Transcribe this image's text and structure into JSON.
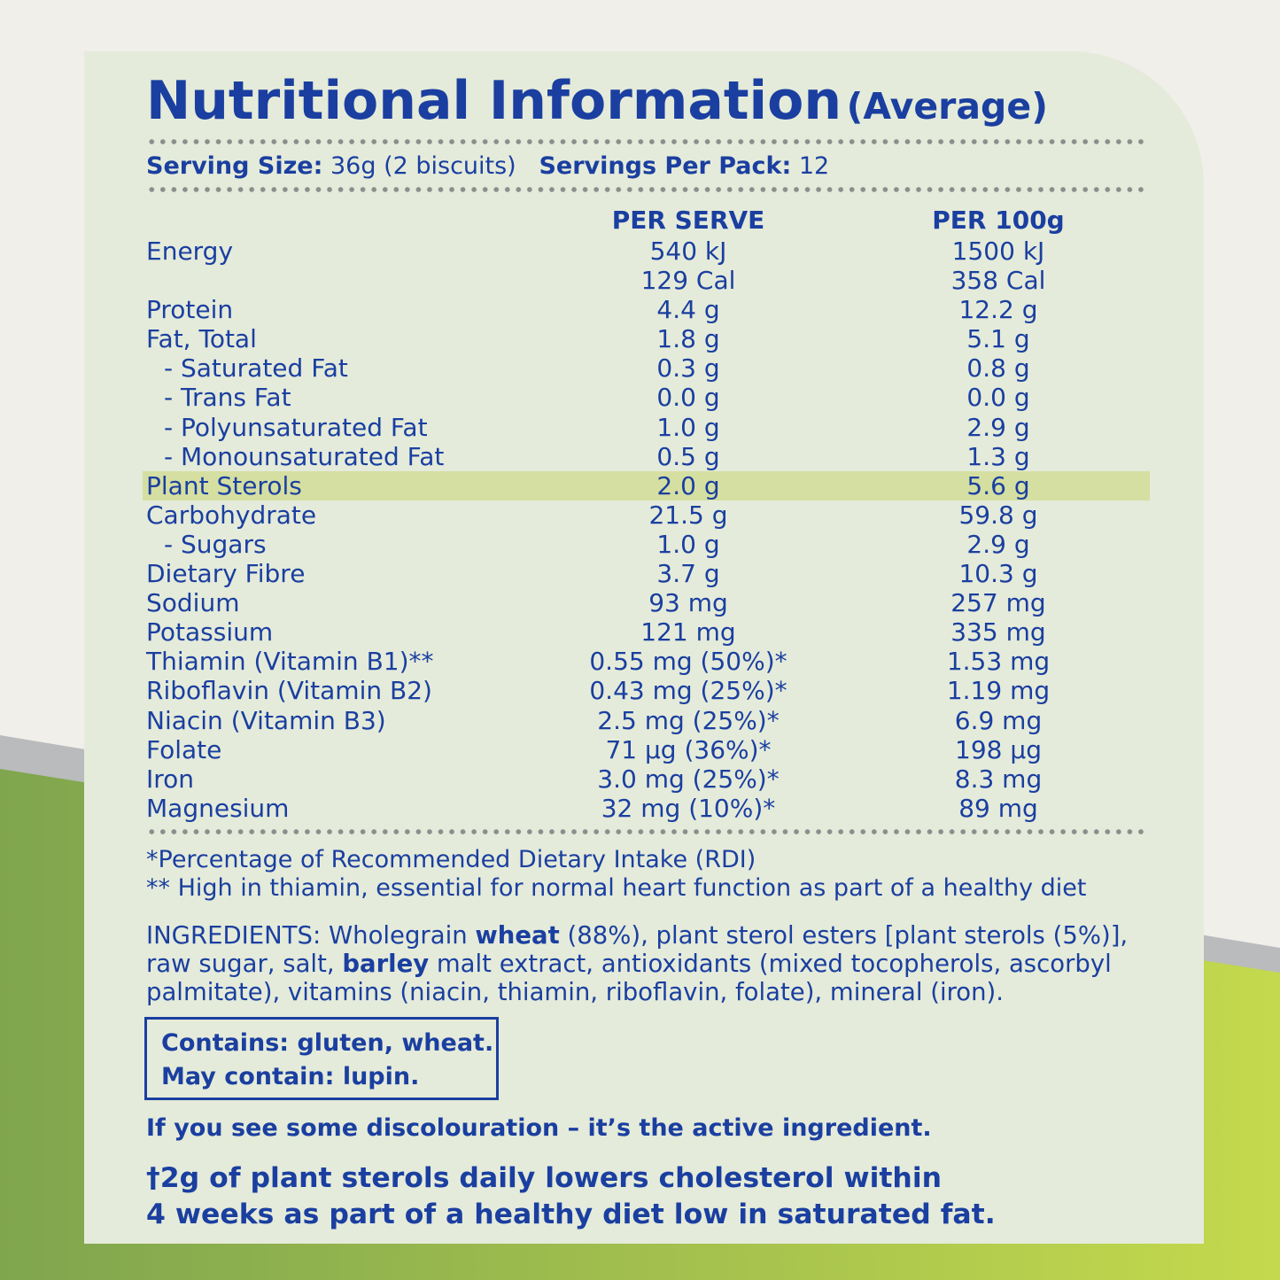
{
  "colors": {
    "text": "#1a3fa0",
    "panel": "#e5ebda",
    "highlight": "#d5dfa1",
    "background": "#f1efea",
    "green_dark": "#7fa54e",
    "green_light": "#c2d84e"
  },
  "title": {
    "main": "Nutritional Information",
    "sub": "(Average)"
  },
  "serving": {
    "size_label": "Serving Size:",
    "size_value": " 36g (2 biscuits)",
    "per_pack_label": "Servings Per Pack:",
    "per_pack_value": " 12"
  },
  "columns": {
    "per_serve": "PER SERVE",
    "per_100g": "PER 100g"
  },
  "rows": [
    {
      "label": "Energy",
      "per_serve": "540 kJ",
      "per_100g": "1500 kJ"
    },
    {
      "label": "",
      "per_serve": "129 Cal",
      "per_100g": "358 Cal"
    },
    {
      "label": "Protein",
      "per_serve": "4.4 g",
      "per_100g": "12.2 g"
    },
    {
      "label": "Fat, Total",
      "per_serve": "1.8 g",
      "per_100g": "5.1 g"
    },
    {
      "label": "- Saturated Fat",
      "per_serve": "0.3 g",
      "per_100g": "0.8 g"
    },
    {
      "label": "- Trans Fat",
      "per_serve": "0.0 g",
      "per_100g": "0.0 g"
    },
    {
      "label": "- Polyunsaturated Fat",
      "per_serve": "1.0 g",
      "per_100g": "2.9 g"
    },
    {
      "label": "- Monounsaturated Fat",
      "per_serve": "0.5 g",
      "per_100g": "1.3 g"
    },
    {
      "label": "Plant Sterols",
      "per_serve": "2.0 g",
      "per_100g": "5.6 g"
    },
    {
      "label": "Carbohydrate",
      "per_serve": "21.5 g",
      "per_100g": "59.8 g"
    },
    {
      "label": "- Sugars",
      "per_serve": "1.0 g",
      "per_100g": "2.9 g"
    },
    {
      "label": "Dietary Fibre",
      "per_serve": "3.7 g",
      "per_100g": "10.3 g"
    },
    {
      "label": "Sodium",
      "per_serve": "93 mg",
      "per_100g": "257 mg"
    },
    {
      "label": "Potassium",
      "per_serve": "121 mg",
      "per_100g": "335 mg"
    },
    {
      "label": "Thiamin (Vitamin B1)**",
      "per_serve": "0.55 mg (50%)*",
      "per_100g": "1.53 mg"
    },
    {
      "label": "Riboflavin (Vitamin B2)",
      "per_serve": "0.43 mg (25%)*",
      "per_100g": "1.19 mg"
    },
    {
      "label": "Niacin (Vitamin B3)",
      "per_serve": "2.5 mg (25%)*",
      "per_100g": "6.9 mg"
    },
    {
      "label": "Folate",
      "per_serve": "71 µg (36%)*",
      "per_100g": "198 µg"
    },
    {
      "label": "Iron",
      "per_serve": "3.0 mg (25%)*",
      "per_100g": "8.3 mg"
    },
    {
      "label": "Magnesium",
      "per_serve": "32 mg (10%)*",
      "per_100g": "89 mg"
    }
  ],
  "notes": {
    "rdi": "*Percentage of Recommended Dietary Intake (RDI)",
    "thiamin": "** High in thiamin, essential for normal heart function as part of a healthy diet"
  },
  "ingredients": {
    "p1": "INGREDIENTS: Wholegrain ",
    "b1": "wheat",
    "p2": " (88%), plant sterol esters [plant sterols (5%)], raw sugar, salt, ",
    "b2": "barley",
    "p3": " malt extract, antioxidants (mixed tocopherols, ascorbyl palmitate), vitamins (niacin, thiamin, riboflavin, folate), mineral (iron)."
  },
  "allergens": {
    "contains": "Contains: gluten, wheat.",
    "may_contain": "May contain: lupin."
  },
  "discolouration": "If you see some discolouration – it’s the active ingredient.",
  "claim": {
    "line1": "†2g of plant sterols daily lowers cholesterol within",
    "line2": "4 weeks as part of a healthy diet low in saturated fat."
  }
}
